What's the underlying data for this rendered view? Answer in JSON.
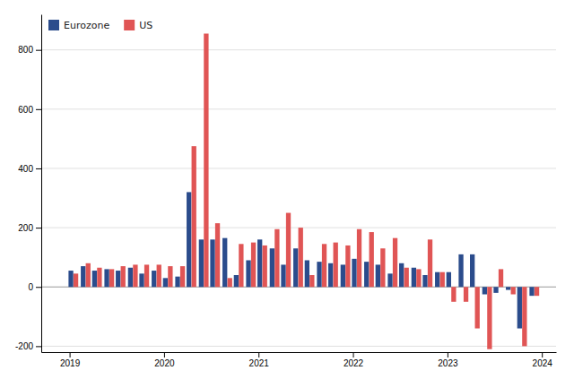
{
  "chart_data": {
    "type": "bar",
    "x": [
      2019.04,
      2019.17,
      2019.29,
      2019.42,
      2019.54,
      2019.67,
      2019.79,
      2019.92,
      2020.04,
      2020.17,
      2020.29,
      2020.42,
      2020.54,
      2020.67,
      2020.79,
      2020.92,
      2021.04,
      2021.17,
      2021.29,
      2021.42,
      2021.54,
      2021.67,
      2021.79,
      2021.92,
      2022.04,
      2022.17,
      2022.29,
      2022.42,
      2022.54,
      2022.67,
      2022.79,
      2022.92,
      2023.04,
      2023.17,
      2023.29,
      2023.42,
      2023.54,
      2023.67,
      2023.79,
      2023.92
    ],
    "series": [
      {
        "name": "Eurozone",
        "color": "#2b4c8c",
        "values": [
          55,
          70,
          55,
          60,
          55,
          65,
          45,
          55,
          30,
          35,
          320,
          160,
          160,
          165,
          40,
          90,
          160,
          130,
          75,
          130,
          90,
          85,
          80,
          75,
          95,
          85,
          75,
          45,
          80,
          65,
          40,
          50,
          50,
          110,
          110,
          -25,
          -20,
          -10,
          -140,
          -30
        ]
      },
      {
        "name": "US",
        "color": "#e05555",
        "values": [
          45,
          80,
          65,
          60,
          70,
          75,
          75,
          75,
          70,
          70,
          475,
          855,
          215,
          30,
          145,
          150,
          140,
          195,
          250,
          200,
          40,
          145,
          150,
          140,
          195,
          185,
          130,
          165,
          65,
          60,
          160,
          50,
          -50,
          -50,
          -140,
          -210,
          60,
          -25,
          -200,
          -30
        ]
      }
    ],
    "xlim": [
      2018.7,
      2024.15
    ],
    "xticks": [
      2019,
      2020,
      2021,
      2022,
      2023,
      2024
    ],
    "ylim": [
      -220,
      920
    ],
    "yticks": [
      -200,
      0,
      200,
      400,
      600,
      800
    ],
    "grid": true,
    "legend": "upper left"
  }
}
